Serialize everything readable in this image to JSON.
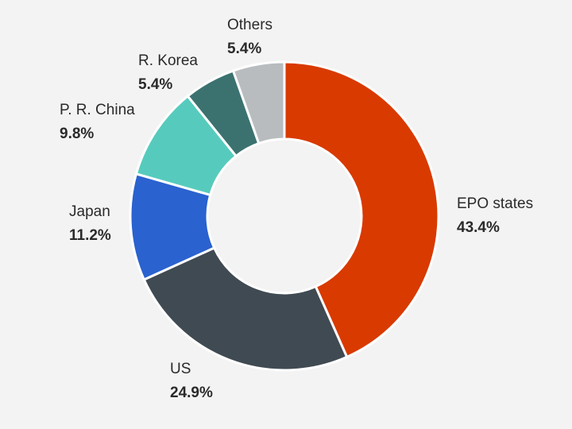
{
  "chart_data": {
    "type": "pie",
    "title": "",
    "slices": [
      {
        "label": "EPO states",
        "value": 43.4,
        "value_label": "43.4%",
        "color": "#d93a00"
      },
      {
        "label": "US",
        "value": 24.9,
        "value_label": "24.9%",
        "color": "#404a52"
      },
      {
        "label": "Japan",
        "value": 11.2,
        "value_label": "11.2%",
        "color": "#2a62cf"
      },
      {
        "label": "P. R. China",
        "value": 9.8,
        "value_label": "9.8%",
        "color": "#56cbbd"
      },
      {
        "label": "R. Korea",
        "value": 5.4,
        "value_label": "5.4%",
        "color": "#3b7270"
      },
      {
        "label": "Others",
        "value": 5.4,
        "value_label": "5.4%",
        "color": "#b8bcbf"
      }
    ],
    "donut": true,
    "start": "top",
    "direction": "clockwise",
    "legend": "none"
  }
}
